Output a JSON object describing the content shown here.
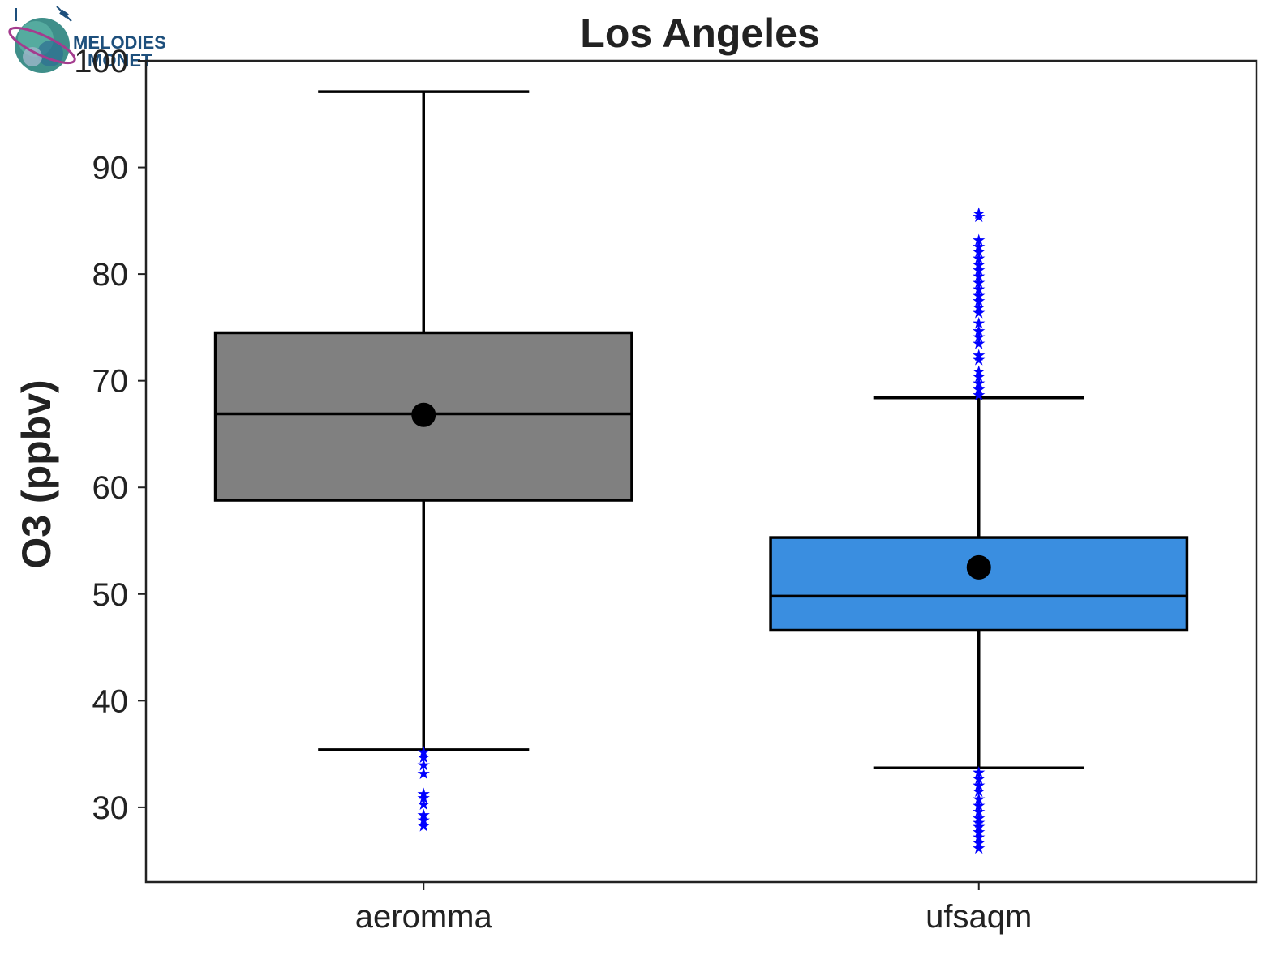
{
  "chart_data": {
    "type": "box",
    "title": "Los Angeles",
    "xlabel": "",
    "ylabel": "O3 (ppbv)",
    "ylim": [
      23,
      100
    ],
    "yticks": [
      30,
      40,
      50,
      60,
      70,
      80,
      90,
      100
    ],
    "grid": false,
    "categories": [
      "aeromma",
      "ufsaqm"
    ],
    "boxes": [
      {
        "name": "aeromma",
        "color": "#808080",
        "whisker_low": 35.4,
        "q1": 58.8,
        "median": 66.9,
        "mean": 66.8,
        "q3": 74.5,
        "whisker_high": 97.1,
        "outliers": [
          28.3,
          28.8,
          29.3,
          30.3,
          30.9,
          31.3,
          33.2,
          34.0,
          34.7,
          35.2
        ]
      },
      {
        "name": "ufsaqm",
        "color": "#3a8ee0",
        "whisker_low": 33.7,
        "q1": 46.6,
        "median": 49.8,
        "mean": 52.5,
        "q3": 55.3,
        "whisker_high": 68.4,
        "outliers": [
          26.2,
          26.7,
          27.2,
          27.7,
          28.2,
          28.6,
          29.0,
          29.6,
          30.2,
          30.8,
          31.5,
          32.1,
          32.7,
          33.3,
          68.7,
          69.2,
          69.8,
          70.4,
          70.9,
          72.0,
          72.4,
          73.5,
          74.1,
          74.7,
          75.4,
          76.4,
          76.9,
          77.5,
          78.0,
          78.6,
          79.2,
          79.8,
          80.4,
          80.9,
          81.5,
          82.1,
          82.6,
          83.2,
          85.4,
          85.7
        ]
      }
    ],
    "outlier_color": "#0000ff",
    "mean_marker_color": "#000000"
  },
  "logo": {
    "line1": "MELODIES",
    "line2": "MONET"
  }
}
